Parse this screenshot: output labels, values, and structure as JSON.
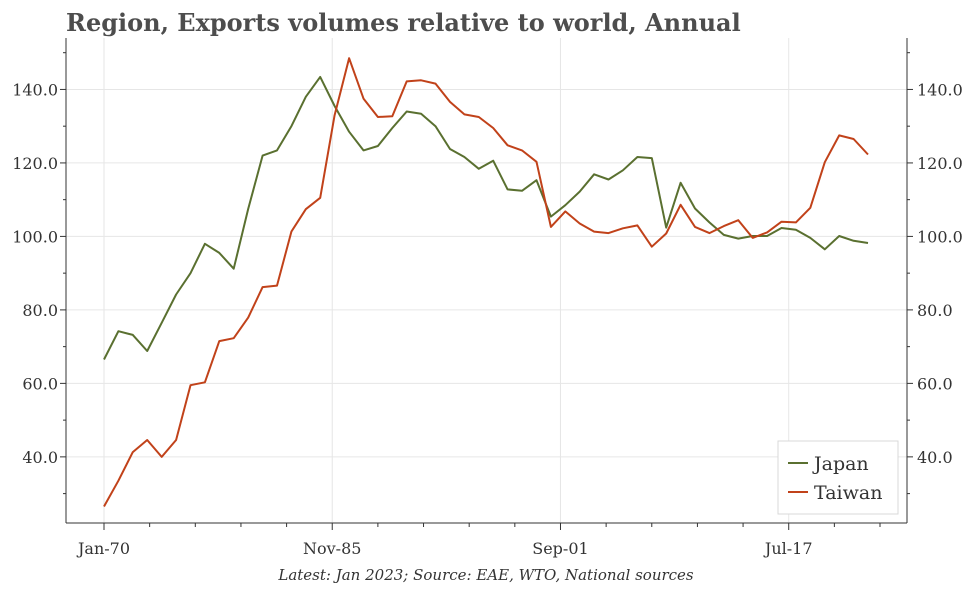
{
  "title": "Region, Exports volumes relative to world, Annual",
  "footer": "Latest: Jan 2023; Source: EAE, WTO, National sources",
  "chart_data": {
    "type": "line",
    "title": "Region, Exports volumes relative to world, Annual",
    "xlabel": "",
    "ylabel": "",
    "ylim": [
      22,
      154
    ],
    "yticks": [
      "40.0",
      "60.0",
      "80.0",
      "100.0",
      "120.0",
      "140.0"
    ],
    "xticks": [
      "Jan-70",
      "Nov-85",
      "Sep-01",
      "Jul-17"
    ],
    "x_start_year": 1970,
    "x_end_year": 2023,
    "grid": true,
    "legend_position": "bottom-right",
    "series": [
      {
        "name": "Japan",
        "color": "#5a7030",
        "values": [
          66.5,
          74.2,
          73.2,
          68.8,
          76.5,
          84.2,
          90.0,
          98.0,
          95.5,
          91.2,
          107.5,
          122.0,
          123.4,
          130.0,
          138.0,
          143.4,
          135.5,
          128.5,
          123.4,
          124.6,
          129.5,
          134.0,
          133.4,
          130.0,
          123.8,
          121.6,
          118.4,
          120.6,
          112.8,
          112.4,
          115.3,
          105.4,
          108.5,
          112.2,
          116.9,
          115.5,
          118.0,
          121.6,
          121.3,
          102.4,
          114.6,
          107.6,
          103.8,
          100.4,
          99.4,
          100.1,
          100.1,
          102.3,
          101.8,
          99.6,
          96.5,
          100.1,
          98.8,
          98.2
        ]
      },
      {
        "name": "Taiwan",
        "color": "#c1421a",
        "values": [
          26.5,
          33.5,
          41.3,
          44.6,
          40.0,
          44.6,
          59.5,
          60.3,
          71.5,
          72.3,
          77.9,
          86.2,
          86.6,
          101.3,
          107.4,
          110.5,
          133.0,
          148.5,
          137.5,
          132.5,
          132.7,
          142.2,
          142.5,
          141.6,
          136.6,
          133.2,
          132.5,
          129.5,
          124.8,
          123.4,
          120.3,
          102.6,
          106.8,
          103.5,
          101.3,
          100.9,
          102.2,
          103.0,
          97.2,
          100.8,
          108.6,
          102.6,
          100.9,
          102.8,
          104.4,
          99.6,
          101.1,
          104.0,
          103.8,
          107.8,
          120.2,
          127.5,
          126.5,
          122.3
        ]
      }
    ]
  }
}
